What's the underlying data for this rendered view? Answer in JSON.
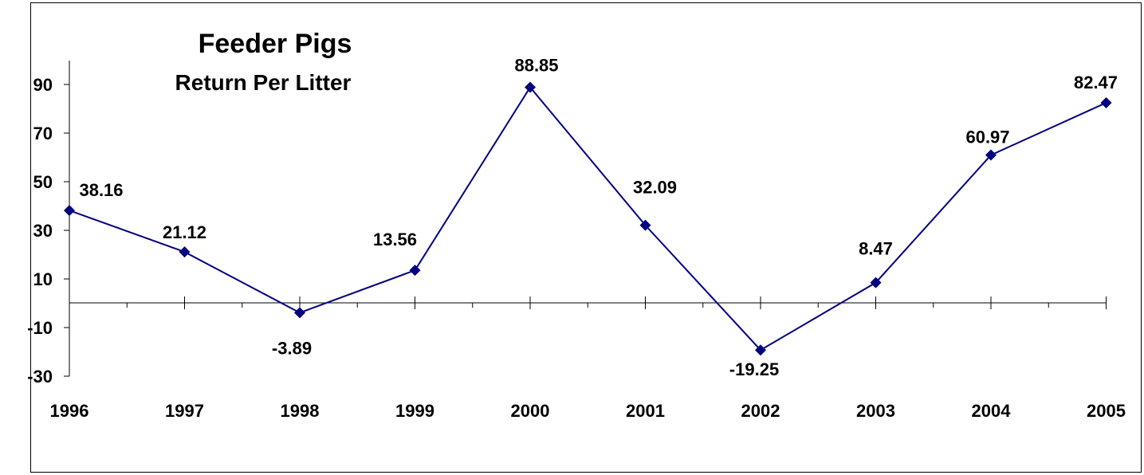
{
  "chart_data": {
    "type": "line",
    "title": "Feeder Pigs",
    "subtitle": "Return Per Litter",
    "xlabel": "",
    "ylabel": "",
    "categories": [
      "1996",
      "1997",
      "1998",
      "1999",
      "2000",
      "2001",
      "2002",
      "2003",
      "2004",
      "2005"
    ],
    "series": [
      {
        "values": [
          38.16,
          21.12,
          -3.89,
          13.56,
          88.85,
          32.09,
          -19.25,
          8.47,
          60.97,
          82.47
        ],
        "labels": [
          "38.16",
          "21.12",
          "-3.89",
          "13.56",
          "88.85",
          "32.09",
          "-19.25",
          "8.47",
          "60.97",
          "82.47"
        ],
        "color": "#000080"
      }
    ],
    "ylim": [
      -30,
      90
    ],
    "yticks": [
      "90",
      "70",
      "50",
      "30",
      "10",
      "-10",
      "-30"
    ],
    "grid": false,
    "marker": "diamond"
  }
}
